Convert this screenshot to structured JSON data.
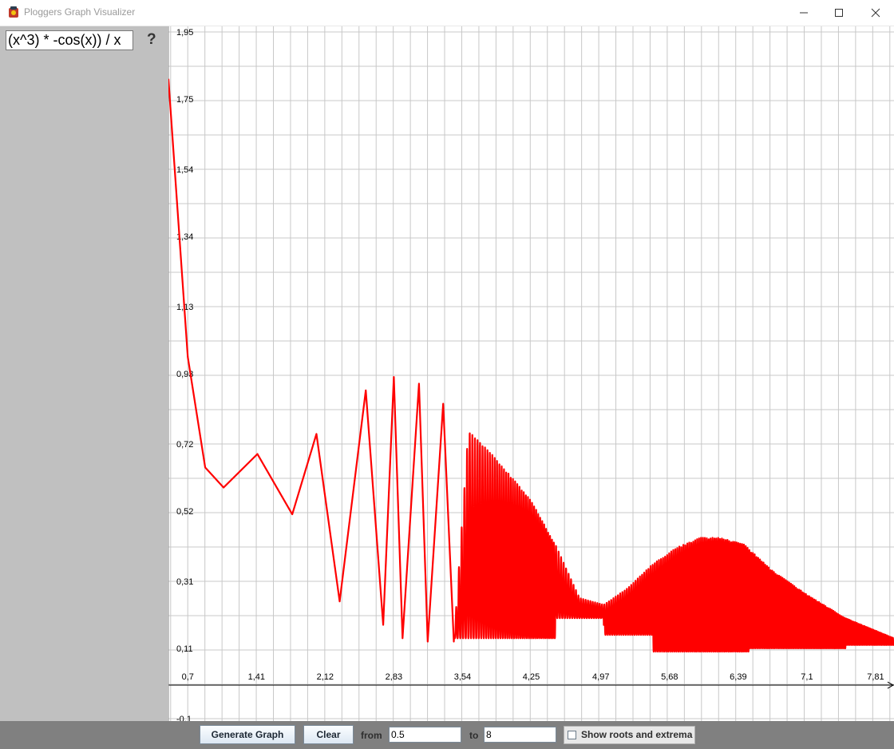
{
  "window": {
    "title": "Ploggers Graph Visualizer",
    "icon": "app-logo-icon",
    "minimize_icon": "minimize-icon",
    "maximize_icon": "maximize-icon",
    "close_icon": "close-icon"
  },
  "sidebar": {
    "function_input": "(x^3) * -cos(x)) / x",
    "help_label": "?"
  },
  "toolbar": {
    "generate_label": "Generate Graph",
    "clear_label": "Clear",
    "from_label": "from",
    "from_value": "0.5",
    "to_label": "to",
    "to_value": "8",
    "show_roots_label": "Show roots and extrema",
    "show_roots_checked": false
  },
  "chart_data": {
    "type": "line",
    "title": "",
    "xlabel": "",
    "ylabel": "",
    "x_range": [
      0.5,
      8
    ],
    "y_range": [
      -0.1,
      1.95
    ],
    "grid": true,
    "line_color": "#ff0000",
    "x_tick_labels": [
      "0,7",
      "1,41",
      "2,12",
      "2,83",
      "3,54",
      "4,25",
      "4,97",
      "5,68",
      "6,39",
      "7,1",
      "7,81"
    ],
    "y_tick_labels": [
      "1,95",
      "1,75",
      "1,54",
      "1,34",
      "1,13",
      "0,93",
      "0,72",
      "0,52",
      "0,31",
      "0,11",
      "-0,1"
    ],
    "series": [
      {
        "name": "",
        "envelope_points": [
          {
            "x": 0.5,
            "y": 1.81
          },
          {
            "x": 0.7,
            "y": 0.98
          },
          {
            "x": 0.88,
            "y": 0.65
          },
          {
            "x": 1.07,
            "y": 0.59
          },
          {
            "x": 1.42,
            "y": 0.69
          },
          {
            "x": 1.78,
            "y": 0.51
          },
          {
            "x": 2.03,
            "y": 0.75
          },
          {
            "x": 2.27,
            "y": 0.25
          },
          {
            "x": 2.54,
            "y": 0.88
          },
          {
            "x": 2.72,
            "y": 0.18
          },
          {
            "x": 2.83,
            "y": 0.92
          },
          {
            "x": 2.92,
            "y": 0.14
          },
          {
            "x": 3.09,
            "y": 0.9
          },
          {
            "x": 3.18,
            "y": 0.13
          },
          {
            "x": 3.34,
            "y": 0.84
          },
          {
            "x": 3.45,
            "y": 0.13
          },
          {
            "x": 3.6,
            "y": 0.76
          },
          {
            "x": 3.84,
            "y": 0.69
          },
          {
            "x": 4.05,
            "y": 0.62
          },
          {
            "x": 4.25,
            "y": 0.55
          },
          {
            "x": 4.5,
            "y": 0.42
          },
          {
            "x": 4.75,
            "y": 0.26
          },
          {
            "x": 5.0,
            "y": 0.24
          },
          {
            "x": 5.25,
            "y": 0.29
          },
          {
            "x": 5.5,
            "y": 0.36
          },
          {
            "x": 5.75,
            "y": 0.41
          },
          {
            "x": 6.0,
            "y": 0.44
          },
          {
            "x": 6.2,
            "y": 0.44
          },
          {
            "x": 6.45,
            "y": 0.42
          },
          {
            "x": 6.75,
            "y": 0.34
          },
          {
            "x": 7.1,
            "y": 0.27
          },
          {
            "x": 7.5,
            "y": 0.2
          },
          {
            "x": 8.0,
            "y": 0.14
          }
        ]
      }
    ]
  }
}
